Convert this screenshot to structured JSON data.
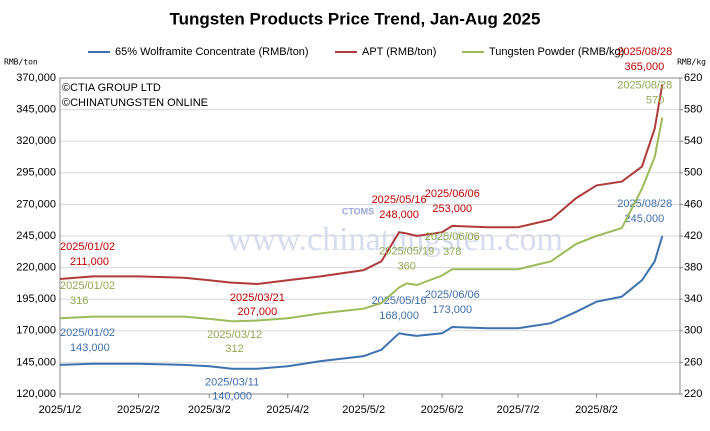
{
  "chart_data": {
    "type": "line",
    "title": "Tungsten Products Price Trend, Jan-Aug 2025",
    "y_label": "RMB/ton",
    "y2_label": "RMB/kg",
    "annotations": [
      "©CTIA GROUP LTD",
      "©CHINATUNGSTEN ONLINE"
    ],
    "watermark": "www.chinatungsten.com",
    "logo": "CTOMS",
    "x": [
      "2025-01-02",
      "2025-01-15",
      "2025-02-02",
      "2025-02-20",
      "2025-03-02",
      "2025-03-11",
      "2025-03-12",
      "2025-03-21",
      "2025-04-02",
      "2025-04-15",
      "2025-05-02",
      "2025-05-09",
      "2025-05-16",
      "2025-05-19",
      "2025-05-23",
      "2025-06-02",
      "2025-06-06",
      "2025-06-20",
      "2025-07-02",
      "2025-07-15",
      "2025-07-25",
      "2025-08-02",
      "2025-08-12",
      "2025-08-20",
      "2025-08-25",
      "2025-08-28"
    ],
    "xlim": [
      "2025-01-02",
      "2025-09-04"
    ],
    "xticks": [
      {
        "value": "2025-01-02",
        "label": "2025/1/2"
      },
      {
        "value": "2025-02-02",
        "label": "2025/2/2"
      },
      {
        "value": "2025-03-02",
        "label": "2025/3/2"
      },
      {
        "value": "2025-04-02",
        "label": "2025/4/2"
      },
      {
        "value": "2025-05-02",
        "label": "2025/5/2"
      },
      {
        "value": "2025-06-02",
        "label": "2025/6/2"
      },
      {
        "value": "2025-07-02",
        "label": "2025/7/2"
      },
      {
        "value": "2025-08-02",
        "label": "2025/8/2"
      }
    ],
    "ylim": [
      120000,
      370000
    ],
    "yticks": [
      {
        "value": 120000,
        "label": "120,000"
      },
      {
        "value": 145000,
        "label": "145,000"
      },
      {
        "value": 170000,
        "label": "170,000"
      },
      {
        "value": 195000,
        "label": "195,000"
      },
      {
        "value": 220000,
        "label": "220,000"
      },
      {
        "value": 245000,
        "label": "245,000"
      },
      {
        "value": 270000,
        "label": "270,000"
      },
      {
        "value": 295000,
        "label": "295,000"
      },
      {
        "value": 320000,
        "label": "320,000"
      },
      {
        "value": 345000,
        "label": "345,000"
      },
      {
        "value": 370000,
        "label": "370,000"
      }
    ],
    "y2lim": [
      220,
      620
    ],
    "y2ticks": [
      220,
      260,
      300,
      340,
      380,
      420,
      460,
      500,
      540,
      580,
      620
    ],
    "grid": true,
    "series": [
      {
        "name": "65% Wolframite Concentrate (RMB/ton)",
        "color": "#3d72b0",
        "label_color": "#3f6fae",
        "values": [
          143000,
          144000,
          144000,
          143000,
          142000,
          140000,
          140000,
          140000,
          142000,
          146000,
          150000,
          155000,
          168000,
          167000,
          166000,
          168000,
          173000,
          172000,
          172000,
          176000,
          185000,
          193000,
          197000,
          210000,
          225000,
          245000
        ],
        "date_labels": [
          "2025/01/02",
          null,
          null,
          null,
          null,
          "2025/03/11",
          null,
          null,
          null,
          null,
          null,
          null,
          "2025/05/16",
          null,
          null,
          null,
          "2025/06/06",
          null,
          null,
          null,
          null,
          null,
          null,
          null,
          null,
          "2025/08/28"
        ],
        "value_labels": [
          "143,000",
          null,
          null,
          null,
          null,
          "140,000",
          null,
          null,
          null,
          null,
          null,
          null,
          "168,000",
          null,
          null,
          null,
          "173,000",
          null,
          null,
          null,
          null,
          null,
          null,
          null,
          null,
          "245,000"
        ]
      },
      {
        "name": "APT (RMB/ton)",
        "color": "#b03a3a",
        "label_color": "#c00000",
        "values": [
          211000,
          213000,
          213000,
          212000,
          210000,
          208000,
          208000,
          207000,
          210000,
          213000,
          218000,
          225000,
          248000,
          247000,
          245000,
          248000,
          253000,
          252000,
          252000,
          258000,
          275000,
          285000,
          288000,
          300000,
          330000,
          365000
        ],
        "date_labels": [
          "2025/01/02",
          null,
          null,
          null,
          null,
          null,
          null,
          "2025/03/21",
          null,
          null,
          null,
          null,
          "2025/05/16",
          null,
          null,
          null,
          "2025/06/06",
          null,
          null,
          null,
          null,
          null,
          null,
          null,
          null,
          "2025/08/28"
        ],
        "value_labels": [
          "211,000",
          null,
          null,
          null,
          null,
          null,
          null,
          "207,000",
          null,
          null,
          null,
          null,
          "248,000",
          null,
          null,
          null,
          "253,000",
          null,
          null,
          null,
          null,
          null,
          null,
          null,
          null,
          "365,000"
        ]
      },
      {
        "name": "Tungsten Powder (RMB/kg)",
        "color": "#9bbb59",
        "label_color": "#8fa850",
        "axis": "y2",
        "values": [
          316,
          318,
          318,
          318,
          315,
          312,
          312,
          313,
          316,
          322,
          328,
          335,
          355,
          360,
          358,
          370,
          378,
          378,
          378,
          388,
          410,
          420,
          430,
          480,
          520,
          570
        ],
        "date_labels": [
          "2025/01/02",
          null,
          null,
          null,
          null,
          null,
          "2025/03/12",
          null,
          null,
          null,
          null,
          null,
          null,
          "2025/05/19",
          null,
          null,
          "2025/06/06",
          null,
          null,
          null,
          null,
          null,
          null,
          null,
          null,
          "2025/08/28"
        ],
        "value_labels": [
          "316",
          null,
          null,
          null,
          null,
          null,
          "312",
          null,
          null,
          null,
          null,
          null,
          null,
          "360",
          null,
          null,
          "378",
          null,
          null,
          null,
          null,
          null,
          null,
          null,
          null,
          "570"
        ]
      }
    ]
  }
}
